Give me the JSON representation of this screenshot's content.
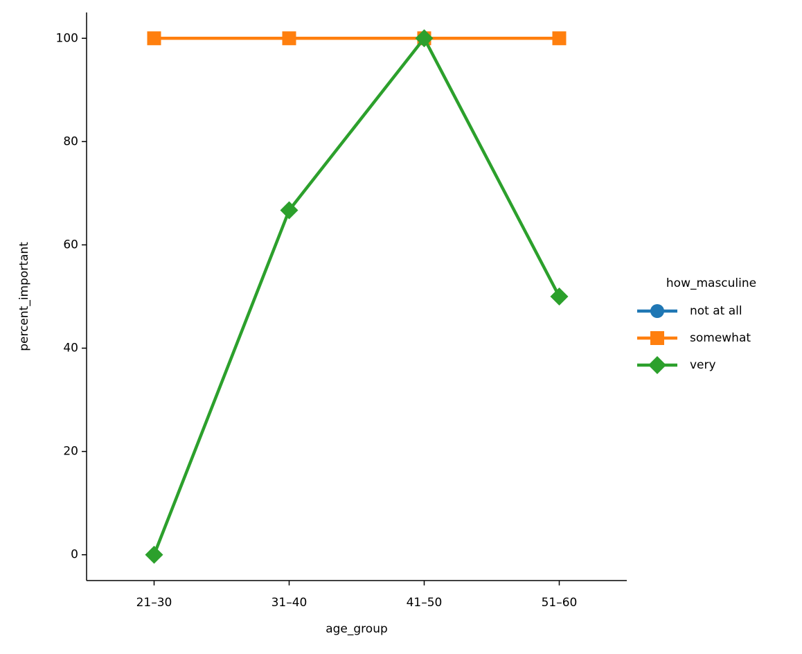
{
  "chart_data": {
    "type": "line",
    "x_label": "age_group",
    "y_label": "percent_important",
    "categories": [
      "21–30",
      "31–40",
      "41–50",
      "51–60"
    ],
    "series": [
      {
        "name": "not at all",
        "color": "#1f77b4",
        "marker": "circle",
        "values": [
          null,
          null,
          null,
          null
        ]
      },
      {
        "name": "somewhat",
        "color": "#ff7f0e",
        "marker": "square",
        "values": [
          100,
          100,
          100,
          100
        ]
      },
      {
        "name": "very",
        "color": "#2ca02c",
        "marker": "diamond",
        "values": [
          0,
          66.7,
          100,
          50
        ]
      }
    ],
    "ylim": [
      -5,
      105
    ],
    "yticks": [
      0,
      20,
      40,
      60,
      80,
      100
    ],
    "grid": false,
    "legend_title": "how_masculine",
    "legend": "right"
  }
}
